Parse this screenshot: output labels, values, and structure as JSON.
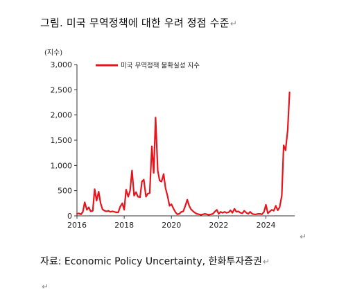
{
  "header": {
    "title": "그림. 미국 무역정책에 대한 우려 정점 수준",
    "mark": "↵"
  },
  "footer": {
    "source": "자료: Economic Policy Uncertainty,  한화투자증권",
    "mark": "↵",
    "empty_line_mark": "↵"
  },
  "chart_data": {
    "type": "line",
    "unit_label": "(지수)",
    "series": [
      {
        "name": "미국 무역정책 불확실성 지수",
        "color": "#e8141c",
        "x": [
          2016.0,
          2016.08,
          2016.17,
          2016.25,
          2016.33,
          2016.42,
          2016.5,
          2016.58,
          2016.67,
          2016.75,
          2016.83,
          2016.92,
          2017.0,
          2017.08,
          2017.17,
          2017.25,
          2017.33,
          2017.42,
          2017.5,
          2017.58,
          2017.67,
          2017.75,
          2017.83,
          2017.92,
          2018.0,
          2018.08,
          2018.17,
          2018.25,
          2018.33,
          2018.42,
          2018.5,
          2018.58,
          2018.67,
          2018.75,
          2018.83,
          2018.92,
          2019.0,
          2019.08,
          2019.17,
          2019.25,
          2019.33,
          2019.42,
          2019.5,
          2019.58,
          2019.67,
          2019.75,
          2019.83,
          2019.92,
          2020.0,
          2020.08,
          2020.17,
          2020.25,
          2020.33,
          2020.42,
          2020.5,
          2020.58,
          2020.67,
          2020.75,
          2020.83,
          2020.92,
          2021.0,
          2021.08,
          2021.17,
          2021.25,
          2021.33,
          2021.42,
          2021.5,
          2021.58,
          2021.67,
          2021.75,
          2021.83,
          2021.92,
          2022.0,
          2022.08,
          2022.17,
          2022.25,
          2022.33,
          2022.42,
          2022.5,
          2022.58,
          2022.67,
          2022.75,
          2022.83,
          2022.92,
          2023.0,
          2023.08,
          2023.17,
          2023.25,
          2023.33,
          2023.42,
          2023.5,
          2023.58,
          2023.67,
          2023.75,
          2023.83,
          2023.92,
          2024.0,
          2024.08,
          2024.17,
          2024.25,
          2024.33,
          2024.42,
          2024.5,
          2024.58,
          2024.67,
          2024.75,
          2024.83,
          2024.92,
          2025.0,
          2025.08,
          2025.17
        ],
        "values": [
          40,
          50,
          30,
          80,
          270,
          120,
          170,
          90,
          100,
          530,
          300,
          480,
          250,
          130,
          100,
          90,
          100,
          80,
          90,
          80,
          70,
          70,
          180,
          250,
          120,
          520,
          380,
          500,
          900,
          400,
          470,
          380,
          370,
          680,
          720,
          380,
          440,
          450,
          1380,
          850,
          1950,
          900,
          700,
          680,
          830,
          550,
          400,
          200,
          230,
          150,
          70,
          30,
          40,
          80,
          90,
          190,
          320,
          200,
          130,
          90,
          60,
          40,
          30,
          20,
          30,
          40,
          30,
          20,
          30,
          40,
          80,
          120,
          40,
          80,
          60,
          80,
          60,
          70,
          110,
          60,
          140,
          80,
          90,
          60,
          50,
          100,
          60,
          40,
          80,
          40,
          30,
          30,
          40,
          40,
          30,
          80,
          220,
          50,
          90,
          120,
          100,
          200,
          110,
          170,
          400,
          1400,
          1300,
          1700,
          2450,
          null,
          null
        ]
      }
    ],
    "xlim": [
      2016,
      2025.1
    ],
    "ylim": [
      0,
      3000
    ],
    "x_ticks": [
      "2016",
      "2018",
      "2020",
      "2022",
      "2024"
    ],
    "y_ticks": [
      "0",
      "500",
      "1,000",
      "1,500",
      "2,000",
      "2,500",
      "3,000"
    ],
    "legend_position": "top-left",
    "grid": false
  }
}
